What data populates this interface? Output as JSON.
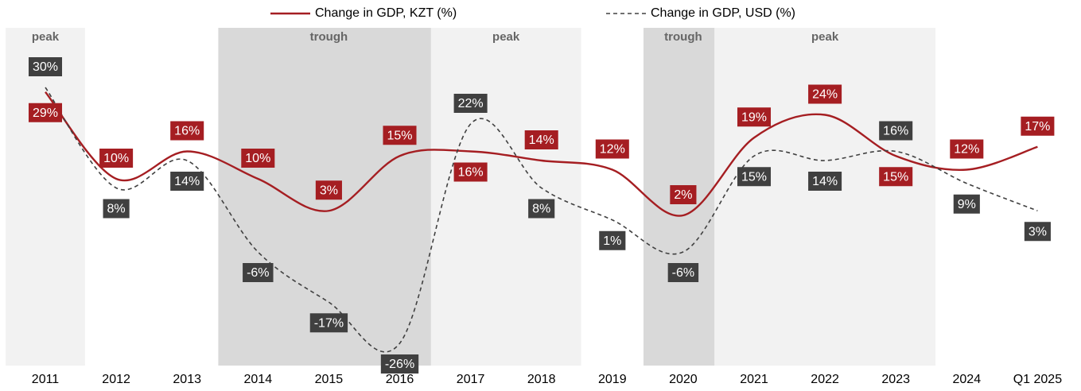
{
  "chart_data": {
    "type": "line",
    "categories": [
      "2011",
      "2012",
      "2013",
      "2014",
      "2015",
      "2016",
      "2017",
      "2018",
      "2019",
      "2020",
      "2021",
      "2022",
      "2023",
      "2024",
      "Q1 2025"
    ],
    "series": [
      {
        "name": "Change in GDP, KZT (%)",
        "color": "#a51e22",
        "dash": false,
        "values": [
          29,
          10,
          16,
          10,
          3,
          15,
          16,
          14,
          12,
          2,
          19,
          24,
          15,
          12,
          17
        ],
        "value_labels": [
          "29%",
          "10%",
          "16%",
          "10%",
          "3%",
          "15%",
          "16%",
          "14%",
          "12%",
          "2%",
          "19%",
          "24%",
          "15%",
          "12%",
          "17%"
        ]
      },
      {
        "name": "Change in GDP, USD (%)",
        "color": "#404040",
        "dash": true,
        "values": [
          30,
          8,
          14,
          -6,
          -17,
          -26,
          22,
          8,
          1,
          -6,
          15,
          14,
          16,
          9,
          3
        ],
        "value_labels": [
          "30%",
          "8%",
          "14%",
          "-6%",
          "-17%",
          "-26%",
          "22%",
          "8%",
          "1%",
          "-6%",
          "15%",
          "14%",
          "16%",
          "9%",
          "3%"
        ]
      }
    ],
    "phases": [
      {
        "label": "peak",
        "start": 0,
        "end": 0
      },
      {
        "label": "trough",
        "start": 3,
        "end": 5
      },
      {
        "label": "peak",
        "start": 6,
        "end": 7
      },
      {
        "label": "trough",
        "start": 9,
        "end": 9
      },
      {
        "label": "peak",
        "start": 10,
        "end": 12
      }
    ],
    "legend": "top"
  }
}
